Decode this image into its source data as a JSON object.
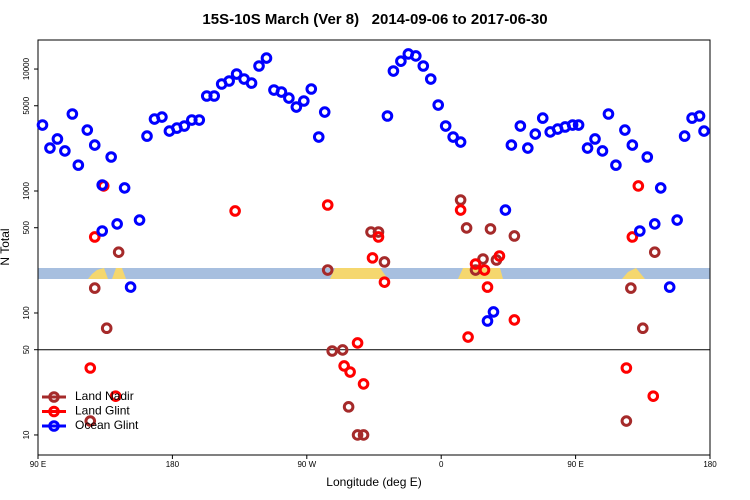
{
  "chart_data": {
    "type": "scatter",
    "title": "15S-10S March (Ver 8)   2014-09-06 to 2017-06-30",
    "x_label": "Longitude (deg E)",
    "y_label": "N Total",
    "log_y": true,
    "xlim": [
      -270,
      180
    ],
    "ylim": [
      6.85,
      17300
    ],
    "xticks": [
      {
        "value": -270,
        "label": "90 E"
      },
      {
        "value": -180,
        "label": "180"
      },
      {
        "value": -90,
        "label": "90 W"
      },
      0,
      {
        "value": 90,
        "label": "90 E"
      },
      {
        "value": 180,
        "label": "180"
      }
    ],
    "yticks": [
      10,
      50,
      100,
      500,
      1000,
      5000,
      10000
    ],
    "reference_line": 50,
    "legend": "bottom-left",
    "series": [
      {
        "name": "Land Nadir",
        "color": "#a52a2a",
        "x": [
          -235,
          -232,
          -224,
          -216,
          -76,
          -73,
          -66,
          -62,
          -56,
          -52,
          -47,
          -42,
          -38,
          13,
          17,
          23,
          28,
          33,
          37,
          49,
          124,
          127,
          135,
          143
        ],
        "values": [
          13,
          160,
          75,
          315,
          225,
          48.8,
          49.8,
          17,
          10,
          10,
          461,
          461,
          262,
          844,
          498,
          225,
          277,
          489,
          272,
          428,
          13,
          160,
          75,
          315
        ]
      },
      {
        "name": "Land Glint",
        "color": "#ff0000",
        "x": [
          -232,
          -226,
          -235,
          -218,
          -138,
          -76,
          -65,
          -61,
          -56,
          -52,
          -46,
          -42,
          -38,
          13,
          18,
          23,
          29,
          31,
          39,
          49,
          124,
          132,
          128,
          142
        ],
        "values": [
          420,
          1100,
          35.4,
          20.8,
          686,
          768,
          36.8,
          32.8,
          56.8,
          26.2,
          283,
          420,
          179,
          698,
          63.5,
          252,
          225,
          163,
          293,
          87.7,
          35.4,
          1100,
          420,
          20.8
        ]
      },
      {
        "name": "Ocean Glint",
        "color": "#0000ff",
        "x": [
          -267,
          -262,
          -257,
          -252,
          -247,
          -243,
          -237,
          -232,
          -227,
          -227,
          -221,
          -217,
          -212,
          -208,
          -202,
          -197,
          -192,
          -187,
          -182,
          -177,
          -172,
          -167,
          -162,
          -157,
          -152,
          -147,
          -142,
          -137,
          -132,
          -127,
          -122,
          -117,
          -112,
          -107,
          -102,
          -97,
          -92,
          -87,
          -82,
          -78,
          -36,
          -32,
          -27,
          -22,
          -17,
          -12,
          -7,
          -2,
          3,
          8,
          13,
          31,
          35,
          43,
          47,
          53,
          58,
          63,
          68,
          73,
          78,
          83,
          88,
          92,
          98,
          103,
          108,
          112,
          117,
          123,
          128,
          133,
          138,
          143,
          147,
          153,
          158,
          163,
          168,
          173,
          176
        ],
        "values": [
          3475,
          2250,
          2670,
          2130,
          4280,
          1630,
          3160,
          2380,
          470,
          1120,
          1900,
          537,
          1060,
          163,
          578,
          2820,
          3890,
          4040,
          3100,
          3280,
          3410,
          3820,
          3820,
          6010,
          6010,
          7540,
          7980,
          9100,
          8280,
          7670,
          10590,
          12300,
          6730,
          6480,
          5780,
          4880,
          5470,
          6860,
          2770,
          4440,
          4120,
          9630,
          11600,
          13300,
          12800,
          10590,
          8280,
          5070,
          3410,
          2770,
          2520,
          86,
          102,
          698,
          2380,
          3410,
          2250,
          2930,
          3960,
          3050,
          3220,
          3350,
          3475,
          3475,
          2250,
          2670,
          2130,
          4280,
          1630,
          3160,
          2380,
          470,
          1900,
          537,
          1060,
          163,
          578,
          2820,
          3960,
          4120,
          3100
        ]
      }
    ]
  }
}
